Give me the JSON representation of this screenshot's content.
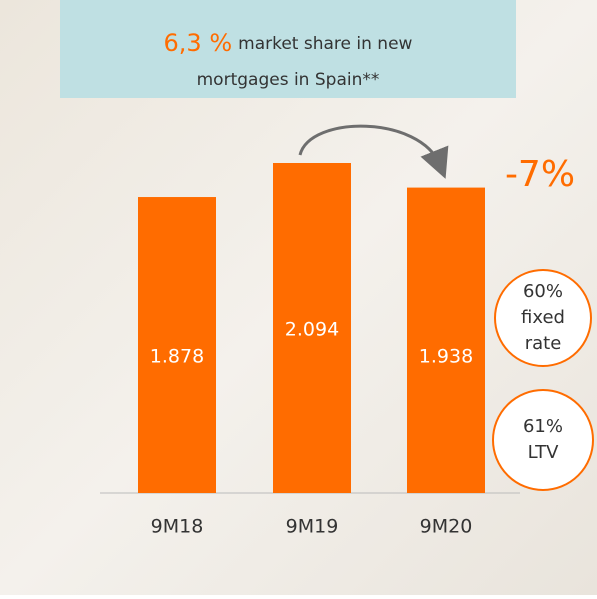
{
  "chart_data": {
    "type": "bar",
    "categories": [
      "9M18",
      "9M19",
      "9M20"
    ],
    "values": [
      1.878,
      2.094,
      1.938
    ],
    "color": "#ff6c00",
    "highlight": "6,3 %",
    "highlight_lines": [
      "market share in new",
      "mortgages in Spain**"
    ],
    "change": "-7%",
    "badges": [
      [
        "60%",
        "fixed",
        "rate"
      ],
      [
        "61%",
        "LTV"
      ]
    ]
  }
}
